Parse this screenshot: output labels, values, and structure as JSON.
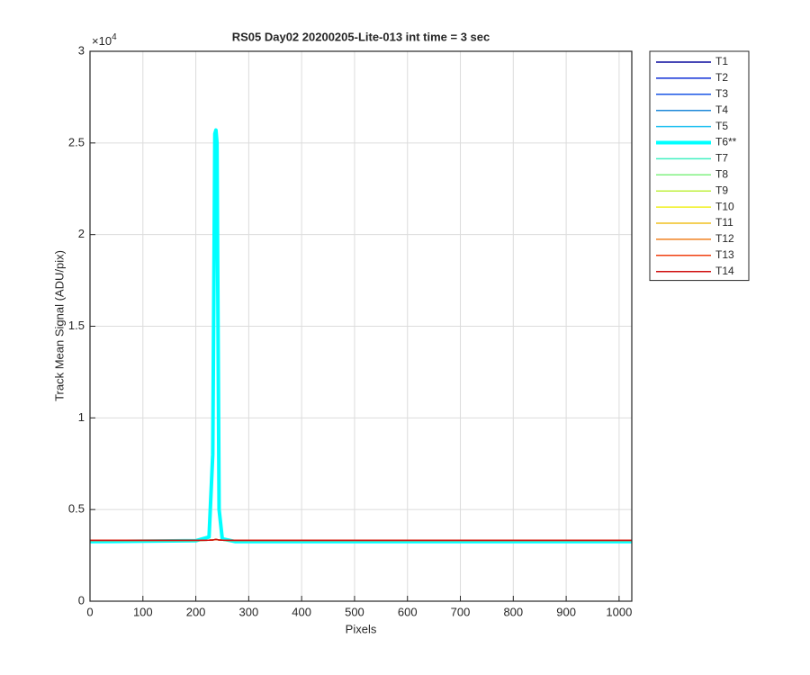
{
  "chart_data": {
    "type": "line",
    "title": "RS05 Day02 20200205-Lite-013 int time = 3 sec",
    "x_label": "Pixels",
    "y_label": "Track Mean Signal (ADU/pix)",
    "y_multiplier_base": "×10",
    "y_multiplier_exp": "4",
    "xlim": [
      0,
      1024
    ],
    "xticks": [
      0,
      100,
      200,
      300,
      400,
      500,
      600,
      700,
      800,
      900,
      1000
    ],
    "ylim": [
      0,
      30000
    ],
    "yticks": [
      0,
      {
        "value": 5000,
        "label": "0.5"
      },
      {
        "value": 10000,
        "label": "1"
      },
      {
        "value": 15000,
        "label": "1.5"
      },
      {
        "value": 20000,
        "label": "2"
      },
      {
        "value": 25000,
        "label": "2.5"
      },
      {
        "value": 30000,
        "label": "3"
      }
    ],
    "grid": true,
    "legend": "outside-right",
    "x": [
      0,
      200,
      225,
      232,
      236,
      238,
      240,
      244,
      250,
      275,
      1024
    ],
    "series": [
      {
        "name": "T1",
        "color": "#0a0a9e",
        "line_width": 1.5,
        "values": [
          3320,
          3320,
          3325,
          3340,
          3360,
          3370,
          3360,
          3340,
          3325,
          3320,
          3320
        ]
      },
      {
        "name": "T2",
        "color": "#0f2fd6",
        "line_width": 1.5,
        "values": [
          3320,
          3320,
          3325,
          3340,
          3360,
          3370,
          3360,
          3340,
          3325,
          3320,
          3320
        ]
      },
      {
        "name": "T3",
        "color": "#1a55e6",
        "line_width": 1.5,
        "values": [
          3320,
          3320,
          3325,
          3340,
          3360,
          3370,
          3360,
          3340,
          3325,
          3320,
          3320
        ]
      },
      {
        "name": "T4",
        "color": "#1e88d8",
        "line_width": 1.5,
        "values": [
          3320,
          3320,
          3325,
          3340,
          3360,
          3370,
          3360,
          3340,
          3325,
          3320,
          3320
        ]
      },
      {
        "name": "T5",
        "color": "#1ec0f0",
        "line_width": 1.5,
        "values": [
          3320,
          3320,
          3325,
          3340,
          3360,
          3370,
          3360,
          3340,
          3325,
          3320,
          3320
        ]
      },
      {
        "name": "T6**",
        "color": "#00ffff",
        "line_width": 4,
        "values": [
          3250,
          3300,
          3500,
          8000,
          25500,
          25700,
          25000,
          5000,
          3400,
          3250,
          3250
        ]
      },
      {
        "name": "T7",
        "color": "#40f0c0",
        "line_width": 1.5,
        "values": [
          3320,
          3320,
          3325,
          3340,
          3360,
          3370,
          3360,
          3340,
          3325,
          3320,
          3320
        ]
      },
      {
        "name": "T8",
        "color": "#80f080",
        "line_width": 1.5,
        "values": [
          3320,
          3320,
          3325,
          3340,
          3360,
          3370,
          3360,
          3340,
          3325,
          3320,
          3320
        ]
      },
      {
        "name": "T9",
        "color": "#c0f040",
        "line_width": 1.5,
        "values": [
          3320,
          3320,
          3325,
          3340,
          3360,
          3370,
          3360,
          3340,
          3325,
          3320,
          3320
        ]
      },
      {
        "name": "T10",
        "color": "#f0f020",
        "line_width": 1.5,
        "values": [
          3320,
          3320,
          3325,
          3340,
          3360,
          3370,
          3360,
          3340,
          3325,
          3320,
          3320
        ]
      },
      {
        "name": "T11",
        "color": "#f0c020",
        "line_width": 1.5,
        "values": [
          3320,
          3320,
          3325,
          3340,
          3360,
          3370,
          3360,
          3340,
          3325,
          3320,
          3320
        ]
      },
      {
        "name": "T12",
        "color": "#f08020",
        "line_width": 1.5,
        "values": [
          3320,
          3320,
          3325,
          3340,
          3360,
          3370,
          3360,
          3340,
          3325,
          3320,
          3320
        ]
      },
      {
        "name": "T13",
        "color": "#f04010",
        "line_width": 1.5,
        "values": [
          3320,
          3320,
          3325,
          3340,
          3360,
          3370,
          3360,
          3340,
          3325,
          3320,
          3320
        ]
      },
      {
        "name": "T14",
        "color": "#d01010",
        "line_width": 1.5,
        "values": [
          3320,
          3320,
          3325,
          3340,
          3360,
          3380,
          3360,
          3340,
          3325,
          3320,
          3320
        ]
      }
    ]
  }
}
